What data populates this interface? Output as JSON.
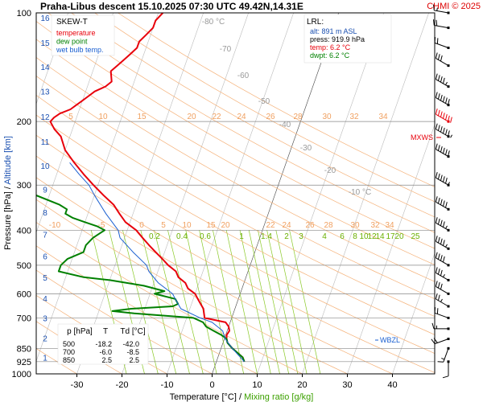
{
  "chart_data": {
    "type": "line",
    "subtype": "skew-T log-P sounding diagram",
    "title": "Praha-Libus   descent   15.10.2025 07:30 UTC   49.42N,14.31E",
    "credit": "CHMI © 2025",
    "xlabel": "Temperature [°C]",
    "xlabel_sep": "/",
    "xlabel2": "Mixing ratio [g/kg]",
    "ylabel": "Pressure [hPa]  /  Altitude [km]",
    "xlim": [
      -35,
      45
    ],
    "x_ticks": [
      -30,
      -20,
      -10,
      0,
      10,
      20,
      30,
      40
    ],
    "ylim_hpa": [
      1000,
      100
    ],
    "pressure_ticks": [
      100,
      200,
      300,
      400,
      500,
      600,
      700,
      850,
      925,
      1000
    ],
    "altitude_ticks_km": [
      {
        "km": 1,
        "p": 900
      },
      {
        "km": 2,
        "p": 795
      },
      {
        "km": 3,
        "p": 700
      },
      {
        "km": 4,
        "p": 617
      },
      {
        "km": 5,
        "p": 541
      },
      {
        "km": 6,
        "p": 472
      },
      {
        "km": 7,
        "p": 411
      },
      {
        "km": 8,
        "p": 357
      },
      {
        "km": 9,
        "p": 308
      },
      {
        "km": 10,
        "p": 265
      },
      {
        "km": 11,
        "p": 227
      },
      {
        "km": 12,
        "p": 194
      },
      {
        "km": 13,
        "p": 165
      },
      {
        "km": 14,
        "p": 141
      },
      {
        "km": 15,
        "p": 121
      },
      {
        "km": 16,
        "p": 103
      }
    ],
    "isotherm_labels": [
      "-80 °C",
      "-70",
      "-60",
      "-50",
      "-40",
      "-30",
      "-20",
      "-10 °C"
    ],
    "mixing_ratio_labels_upper": [
      "5",
      "10",
      "15",
      "20",
      "22",
      "24",
      "26",
      "28",
      "30",
      "32",
      "34"
    ],
    "mixing_ratio_labels_mid": [
      "-10",
      "-5",
      "0",
      "5",
      "10",
      "15",
      "20",
      "22",
      "24",
      "26",
      "28",
      "30",
      "32",
      "34"
    ],
    "mixing_ratio_labels_lower": [
      "0.2",
      "0.4",
      "0.6",
      "1",
      "1.4",
      "2",
      "3",
      "4",
      "6",
      "8",
      "10",
      "12",
      "14",
      "17",
      "20",
      "25"
    ],
    "legend": {
      "title": "SKEW-T",
      "items": [
        {
          "label": "temperature",
          "color": "#e8000b"
        },
        {
          "label": "dew point",
          "color": "#008000"
        },
        {
          "label": "wet bulb temp.",
          "color": "#1a5fd0"
        }
      ]
    },
    "lrl": {
      "title": "LRL:",
      "alt": "alt: 891 m ASL",
      "press": "press: 919.9 hPa",
      "temp": "temp: 6.2 °C",
      "dwpt": "dwpt: 6.2 °C"
    },
    "annotations": {
      "mxws": "MXWS",
      "wbzl": "WBZL"
    },
    "table": {
      "headers": [
        "p [hPa]",
        "T",
        "Td [°C]"
      ],
      "rows": [
        [
          "500",
          "-18.2",
          "-42.0"
        ],
        [
          "700",
          "-6.0",
          "-8.5"
        ],
        [
          "850",
          "2.5",
          "2.5"
        ]
      ]
    },
    "series": [
      {
        "name": "temperature",
        "color": "#e8000b",
        "points": [
          [
            925,
            6.2
          ],
          [
            900,
            5.5
          ],
          [
            850,
            2.5
          ],
          [
            820,
            1.0
          ],
          [
            800,
            0.5
          ],
          [
            780,
            0.2
          ],
          [
            760,
            0.5
          ],
          [
            740,
            0
          ],
          [
            720,
            -1
          ],
          [
            700,
            -6.0
          ],
          [
            680,
            -6.5
          ],
          [
            660,
            -7
          ],
          [
            640,
            -8
          ],
          [
            620,
            -9
          ],
          [
            600,
            -10
          ],
          [
            580,
            -12
          ],
          [
            560,
            -13
          ],
          [
            540,
            -15
          ],
          [
            520,
            -16
          ],
          [
            500,
            -18.2
          ],
          [
            480,
            -20
          ],
          [
            460,
            -22
          ],
          [
            440,
            -24
          ],
          [
            420,
            -26
          ],
          [
            400,
            -28
          ],
          [
            380,
            -31
          ],
          [
            360,
            -33
          ],
          [
            340,
            -35
          ],
          [
            320,
            -38
          ],
          [
            300,
            -41
          ],
          [
            280,
            -44
          ],
          [
            260,
            -47
          ],
          [
            240,
            -50
          ],
          [
            220,
            -52
          ],
          [
            210,
            -54
          ],
          [
            200,
            -55.5
          ],
          [
            195,
            -55
          ],
          [
            190,
            -54
          ],
          [
            185,
            -52
          ],
          [
            180,
            -51
          ],
          [
            175,
            -50
          ],
          [
            170,
            -49
          ],
          [
            165,
            -48
          ],
          [
            160,
            -46
          ],
          [
            155,
            -45
          ],
          [
            150,
            -45.5
          ],
          [
            145,
            -46
          ],
          [
            140,
            -45
          ],
          [
            135,
            -44
          ],
          [
            130,
            -43
          ],
          [
            125,
            -42
          ],
          [
            120,
            -42
          ],
          [
            115,
            -41
          ],
          [
            110,
            -40
          ],
          [
            105,
            -40
          ],
          [
            100,
            -39
          ]
        ]
      },
      {
        "name": "dew point",
        "color": "#008000",
        "points": [
          [
            925,
            6.2
          ],
          [
            900,
            5.5
          ],
          [
            850,
            2.5
          ],
          [
            820,
            1.0
          ],
          [
            800,
            0.5
          ],
          [
            780,
            -1
          ],
          [
            760,
            -3
          ],
          [
            740,
            -5
          ],
          [
            720,
            -6
          ],
          [
            700,
            -8.5
          ],
          [
            680,
            -22
          ],
          [
            670,
            -27
          ],
          [
            660,
            -23
          ],
          [
            650,
            -14
          ],
          [
            640,
            -13
          ],
          [
            620,
            -14
          ],
          [
            600,
            -19
          ],
          [
            590,
            -17
          ],
          [
            570,
            -22
          ],
          [
            550,
            -30
          ],
          [
            540,
            -36
          ],
          [
            520,
            -42
          ],
          [
            500,
            -42.0
          ],
          [
            480,
            -41
          ],
          [
            460,
            -38
          ],
          [
            440,
            -38
          ],
          [
            420,
            -37
          ],
          [
            400,
            -35
          ],
          [
            390,
            -37
          ],
          [
            380,
            -40
          ],
          [
            370,
            -43
          ],
          [
            360,
            -45
          ],
          [
            350,
            -45
          ],
          [
            340,
            -47
          ],
          [
            320,
            -53
          ],
          [
            300,
            -56
          ],
          [
            290,
            -56
          ],
          [
            280,
            -58
          ],
          [
            270,
            -62
          ],
          [
            260,
            -66
          ],
          [
            250,
            -65
          ],
          [
            240,
            -67
          ],
          [
            230,
            -68
          ],
          [
            220,
            -70
          ],
          [
            210,
            -72
          ],
          [
            200,
            -73
          ],
          [
            190,
            -74
          ],
          [
            180,
            -75
          ],
          [
            170,
            -76
          ],
          [
            160,
            -78
          ],
          [
            150,
            -80
          ],
          [
            140,
            -80
          ],
          [
            130,
            -81
          ],
          [
            120,
            -82
          ],
          [
            110,
            -83
          ],
          [
            100,
            -84
          ]
        ]
      },
      {
        "name": "wet bulb temp.",
        "color": "#1a5fd0",
        "points": [
          [
            925,
            6.2
          ],
          [
            850,
            2.5
          ],
          [
            800,
            0.2
          ],
          [
            760,
            -1
          ],
          [
            720,
            -4
          ],
          [
            700,
            -7
          ],
          [
            660,
            -12
          ],
          [
            620,
            -14
          ],
          [
            600,
            -15
          ],
          [
            560,
            -19
          ],
          [
            520,
            -22
          ],
          [
            500,
            -23
          ],
          [
            460,
            -27
          ],
          [
            420,
            -31
          ],
          [
            400,
            -32
          ],
          [
            360,
            -36
          ],
          [
            320,
            -40
          ],
          [
            300,
            -42
          ],
          [
            280,
            -45
          ],
          [
            260,
            -48
          ]
        ]
      }
    ],
    "wind_barbs": [
      {
        "p": 925,
        "dir": 180,
        "speed_kt": 10
      },
      {
        "p": 850,
        "dir": 200,
        "speed_kt": 15
      },
      {
        "p": 800,
        "dir": 250,
        "speed_kt": 20
      },
      {
        "p": 750,
        "dir": 270,
        "speed_kt": 15
      },
      {
        "p": 700,
        "dir": 290,
        "speed_kt": 20
      },
      {
        "p": 650,
        "dir": 300,
        "speed_kt": 25
      },
      {
        "p": 600,
        "dir": 300,
        "speed_kt": 30
      },
      {
        "p": 550,
        "dir": 300,
        "speed_kt": 35
      },
      {
        "p": 500,
        "dir": 300,
        "speed_kt": 40
      },
      {
        "p": 450,
        "dir": 300,
        "speed_kt": 45
      },
      {
        "p": 400,
        "dir": 300,
        "speed_kt": 45
      },
      {
        "p": 350,
        "dir": 300,
        "speed_kt": 50
      },
      {
        "p": 300,
        "dir": 300,
        "speed_kt": 55
      },
      {
        "p": 250,
        "dir": 300,
        "speed_kt": 60
      },
      {
        "p": 220,
        "dir": 300,
        "speed_kt": 65
      },
      {
        "p": 200,
        "dir": 300,
        "speed_kt": 70
      },
      {
        "p": 180,
        "dir": 300,
        "speed_kt": 60
      },
      {
        "p": 160,
        "dir": 300,
        "speed_kt": 45
      },
      {
        "p": 140,
        "dir": 300,
        "speed_kt": 30
      },
      {
        "p": 125,
        "dir": 290,
        "speed_kt": 20
      },
      {
        "p": 110,
        "dir": 280,
        "speed_kt": 20
      },
      {
        "p": 100,
        "dir": 280,
        "speed_kt": 15
      }
    ],
    "grid": true
  }
}
